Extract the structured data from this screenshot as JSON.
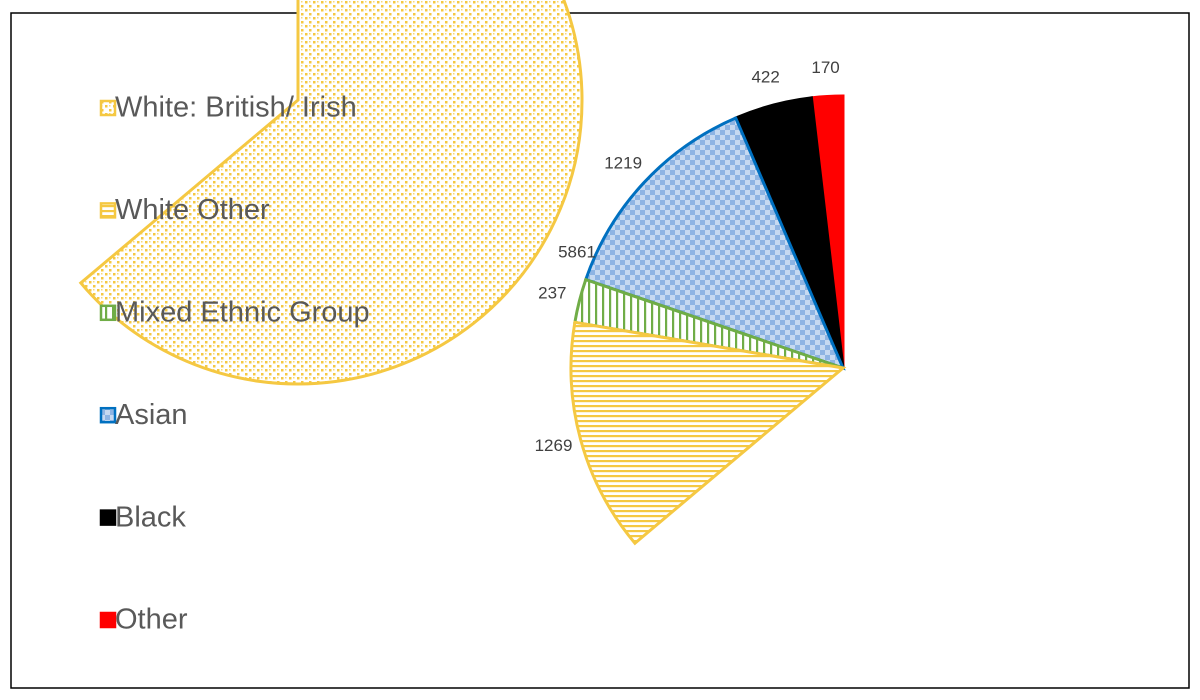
{
  "chart_data": {
    "type": "pie",
    "categories": [
      "White: British/ Irish",
      "White Other",
      "Mixed Ethnic Group",
      "Asian",
      "Black",
      "Other"
    ],
    "values": [
      5861,
      1269,
      237,
      1219,
      422,
      170
    ],
    "colors": [
      "#f5c842",
      "#f5c842",
      "#70ad47",
      "#0070c0",
      "#000000",
      "#ff0000"
    ],
    "legend": "left"
  }
}
